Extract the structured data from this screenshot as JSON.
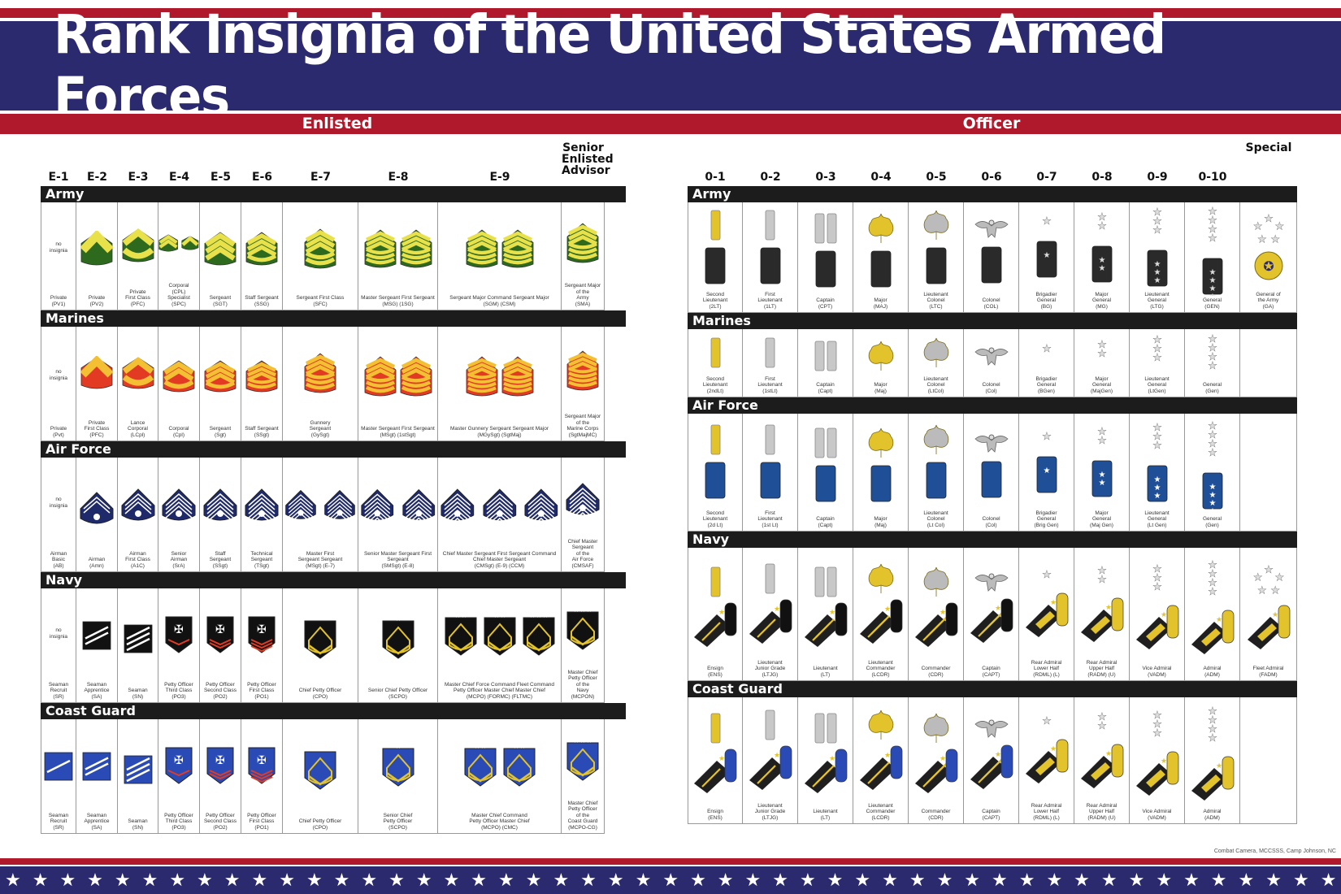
{
  "title": "Rank Insignia of the United States Armed Forces",
  "sections": {
    "enlisted": "Enlisted",
    "officer": "Officer"
  },
  "credit": "Combat Camera, MCCSSS, Camp Johnson, NC",
  "colors": {
    "navy": "#2c2a6e",
    "red": "#b0192b",
    "army_green": "#2d6a1e",
    "army_gold": "#e8e14a",
    "marine_red": "#e23a23",
    "marine_gold": "#f2c032",
    "af_blue": "#1f2a6b",
    "coast_blue": "#2a4bb5",
    "gold": "#e3c32b",
    "silver": "#c8c8c8"
  },
  "enlisted": {
    "columns": [
      "E-1",
      "E-2",
      "E-3",
      "E-4",
      "E-5",
      "E-6",
      "E-7",
      "E-8",
      "E-9",
      "Senior Enlisted Advisor"
    ],
    "branches": [
      {
        "name": "Army",
        "cells": [
          {
            "label": "Private\n(PV1)",
            "note": "no\ninsignia"
          },
          {
            "label": "Private\n(PV2)"
          },
          {
            "label": "Private\nFirst Class\n(PFC)"
          },
          {
            "label": "Corporal\n(CPL)  Specialist\n(SPC)"
          },
          {
            "label": "Sergeant\n(SGT)"
          },
          {
            "label": "Staff Sergeant\n(SSG)"
          },
          {
            "label": "Sergeant First Class\n(SFC)"
          },
          {
            "label": "Master Sergeant   First Sergeant\n(MSG)   (1SG)"
          },
          {
            "label": "Sergeant Major   Command Sergeant Major\n(SGM)   (CSM)"
          },
          {
            "label": "Sergeant Major\nof the\nArmy\n(SMA)"
          }
        ]
      },
      {
        "name": "Marines",
        "cells": [
          {
            "label": "Private\n(Pvt)",
            "note": "no\ninsignia"
          },
          {
            "label": "Private\nFirst Class\n(PFC)"
          },
          {
            "label": "Lance\nCorporal\n(LCpl)"
          },
          {
            "label": "Corporal\n(Cpl)"
          },
          {
            "label": "Sergeant\n(Sgt)"
          },
          {
            "label": "Staff Sergeant\n(SSgt)"
          },
          {
            "label": "Gunnery\nSergeant\n(GySgt)"
          },
          {
            "label": "Master Sergeant   First Sergeant\n(MSgt)   (1stSgt)"
          },
          {
            "label": "Master Gunnery Sergeant   Sergeant Major\n(MGySgt)   (SgtMaj)"
          },
          {
            "label": "Sergeant Major\nof the\nMarine Corps\n(SgtMajMC)"
          }
        ]
      },
      {
        "name": "Air Force",
        "cells": [
          {
            "label": "Airman\nBasic\n(AB)",
            "note": "no\ninsignia"
          },
          {
            "label": "Airman\n(Amn)"
          },
          {
            "label": "Airman\nFirst Class\n(A1C)"
          },
          {
            "label": "Senior\nAirman\n(SrA)"
          },
          {
            "label": "Staff\nSergeant\n(SSgt)"
          },
          {
            "label": "Technical\nSergeant\n(TSgt)"
          },
          {
            "label": "Master   First\nSergeant   Sergeant\n(MSgt)   (E-7)"
          },
          {
            "label": "Senior Master Sergeant   First Sergeant\n(SMSgt)   (E-8)"
          },
          {
            "label": "Chief Master Sergeant   First Sergeant   Command Chief Master Sergeant\n(CMSgt)   (E-9)   (CCM)"
          },
          {
            "label": "Chief Master\nSergeant\nof the\nAir Force\n(CMSAF)"
          }
        ]
      },
      {
        "name": "Navy",
        "cells": [
          {
            "label": "Seaman\nRecruit\n(SR)",
            "note": "no\ninsignia"
          },
          {
            "label": "Seaman\nApprentice\n(SA)"
          },
          {
            "label": "Seaman\n(SN)"
          },
          {
            "label": "Petty Officer\nThird Class\n(PO3)"
          },
          {
            "label": "Petty Officer\nSecond Class\n(PO2)"
          },
          {
            "label": "Petty Officer\nFirst Class\n(PO1)"
          },
          {
            "label": "Chief Petty Officer\n(CPO)"
          },
          {
            "label": "Senior Chief Petty Officer\n(SCPO)"
          },
          {
            "label": "Master Chief   Force Command   Fleet Command\nPetty Officer   Master Chief   Master Chief\n(MCPO)   (FORMC)   (FLTMC)"
          },
          {
            "label": "Master Chief\nPetty Officer\nof the\nNavy\n(MCPON)"
          }
        ]
      },
      {
        "name": "Coast Guard",
        "cells": [
          {
            "label": "Seaman\nRecruit\n(SR)"
          },
          {
            "label": "Seaman\nApprentice\n(SA)"
          },
          {
            "label": "Seaman\n(SN)"
          },
          {
            "label": "Petty Officer\nThird Class\n(PO3)"
          },
          {
            "label": "Petty Officer\nSecond Class\n(PO2)"
          },
          {
            "label": "Petty Officer\nFirst Class\n(PO1)"
          },
          {
            "label": "Chief Petty Officer\n(CPO)"
          },
          {
            "label": "Senior Chief\nPetty Officer\n(SCPO)"
          },
          {
            "label": "Master Chief   Command\nPetty Officer   Master Chief\n(MCPO)   (CMC)"
          },
          {
            "label": "Master Chief\nPetty Officer\nof the\nCoast Guard\n(MCPO-CG)"
          }
        ]
      }
    ]
  },
  "officer": {
    "columns": [
      "0-1",
      "0-2",
      "0-3",
      "0-4",
      "0-5",
      "0-6",
      "0-7",
      "0-8",
      "0-9",
      "0-10",
      "Special"
    ],
    "branches": [
      {
        "name": "Army",
        "cells": [
          {
            "label": "Second\nLieutenant\n(2LT)"
          },
          {
            "label": "First\nLieutenant\n(1LT)"
          },
          {
            "label": "Captain\n(CPT)"
          },
          {
            "label": "Major\n(MAJ)"
          },
          {
            "label": "Lieutenant\nColonel\n(LTC)"
          },
          {
            "label": "Colonel\n(COL)"
          },
          {
            "label": "Brigadier\nGeneral\n(BG)"
          },
          {
            "label": "Major\nGeneral\n(MG)"
          },
          {
            "label": "Lieutenant\nGeneral\n(LTG)"
          },
          {
            "label": "General\n(GEN)"
          },
          {
            "label": "General of\nthe Army\n(GA)"
          }
        ]
      },
      {
        "name": "Marines",
        "cells": [
          {
            "label": "Second\nLieutenant\n(2ndLt)"
          },
          {
            "label": "First\nLieutenant\n(1stLt)"
          },
          {
            "label": "Captain\n(Capt)"
          },
          {
            "label": "Major\n(Maj)"
          },
          {
            "label": "Lieutenant\nColonel\n(LtCol)"
          },
          {
            "label": "Colonel\n(Col)"
          },
          {
            "label": "Brigadier\nGeneral\n(BGen)"
          },
          {
            "label": "Major\nGeneral\n(MajGen)"
          },
          {
            "label": "Lieutenant\nGeneral\n(LtGen)"
          },
          {
            "label": "General\n(Gen)"
          },
          {
            "label": ""
          }
        ]
      },
      {
        "name": "Air Force",
        "cells": [
          {
            "label": "Second\nLieutenant\n(2d Lt)"
          },
          {
            "label": "First\nLieutenant\n(1st Lt)"
          },
          {
            "label": "Captain\n(Capt)"
          },
          {
            "label": "Major\n(Maj)"
          },
          {
            "label": "Lieutenant\nColonel\n(Lt Col)"
          },
          {
            "label": "Colonel\n(Col)"
          },
          {
            "label": "Brigadier\nGeneral\n(Brig Gen)"
          },
          {
            "label": "Major\nGeneral\n(Maj Gen)"
          },
          {
            "label": "Lieutenant\nGeneral\n(Lt Gen)"
          },
          {
            "label": "General\n(Gen)"
          },
          {
            "label": ""
          }
        ]
      },
      {
        "name": "Navy",
        "cells": [
          {
            "label": "Ensign\n(ENS)"
          },
          {
            "label": "Lieutenant\nJunior Grade\n(LTJG)"
          },
          {
            "label": "Lieutenant\n(LT)"
          },
          {
            "label": "Lieutenant\nCommander\n(LCDR)"
          },
          {
            "label": "Commander\n(CDR)"
          },
          {
            "label": "Captain\n(CAPT)"
          },
          {
            "label": "Rear Admiral\nLower Half\n(RDML) (L)"
          },
          {
            "label": "Rear Admiral\nUpper Half\n(RADM) (U)"
          },
          {
            "label": "Vice Admiral\n(VADM)"
          },
          {
            "label": "Admiral\n(ADM)"
          },
          {
            "label": "Fleet Admiral\n(FADM)"
          }
        ]
      },
      {
        "name": "Coast Guard",
        "cells": [
          {
            "label": "Ensign\n(ENS)"
          },
          {
            "label": "Lieutenant\nJunior Grade\n(LTJG)"
          },
          {
            "label": "Lieutenant\n(LT)"
          },
          {
            "label": "Lieutenant\nCommander\n(LCDR)"
          },
          {
            "label": "Commander\n(CDR)"
          },
          {
            "label": "Captain\n(CAPT)"
          },
          {
            "label": "Rear Admiral\nLower Half\n(RDML) (L)"
          },
          {
            "label": "Rear Admiral\nUpper Half\n(RADM) (U)"
          },
          {
            "label": "Vice Admiral\n(VADM)"
          },
          {
            "label": "Admiral\n(ADM)"
          },
          {
            "label": ""
          }
        ]
      }
    ]
  }
}
